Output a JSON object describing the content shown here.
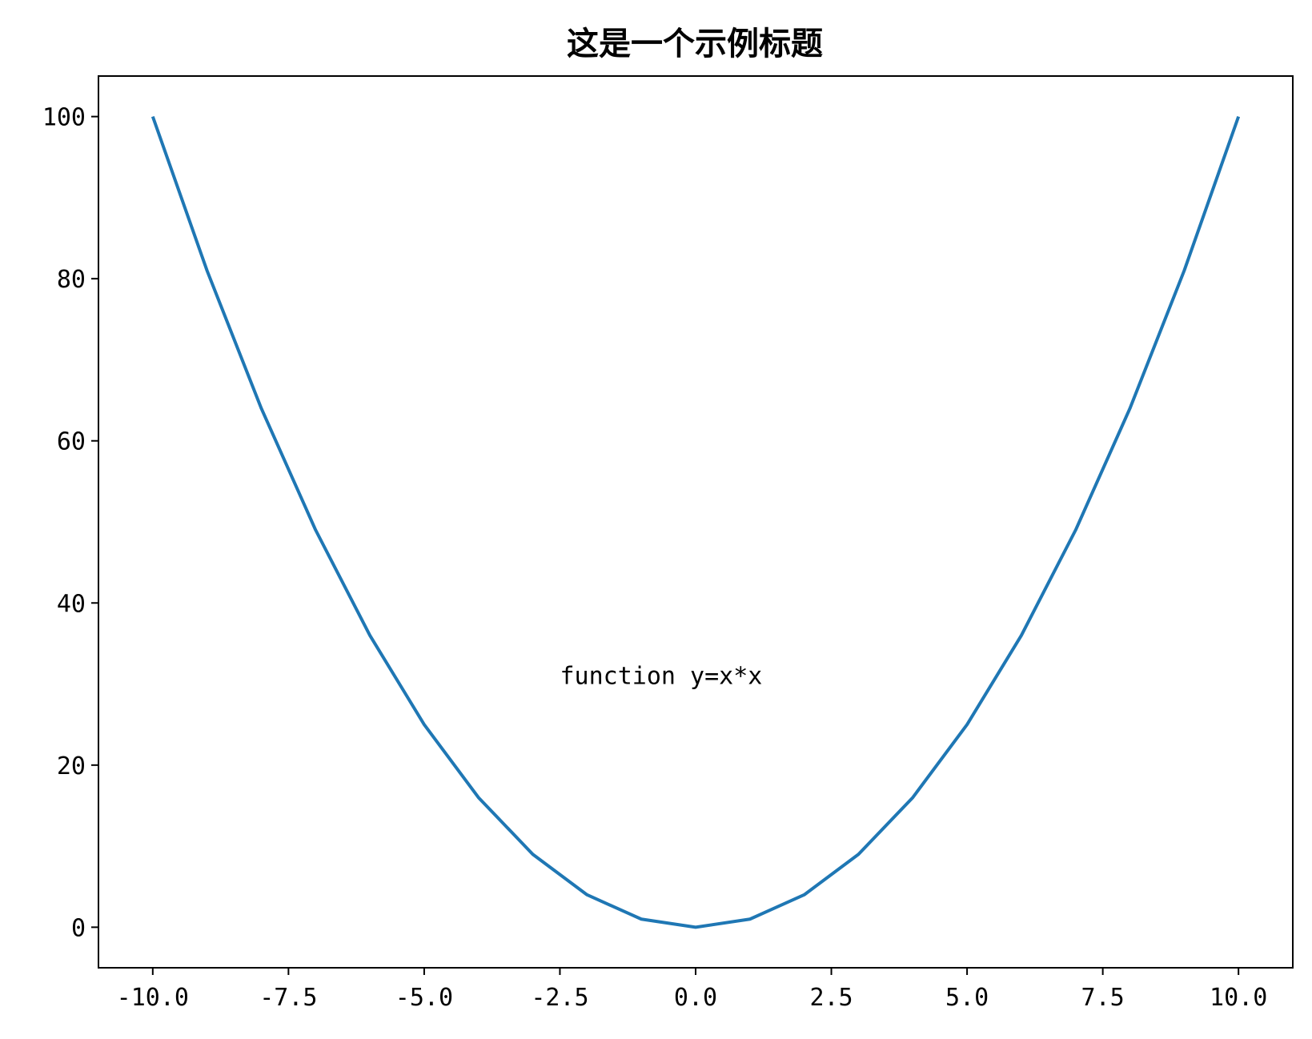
{
  "chart_data": {
    "type": "line",
    "title": "这是一个示例标题",
    "xlabel": "",
    "ylabel": "",
    "xlim": [
      -11,
      11
    ],
    "ylim": [
      -5,
      105
    ],
    "x_ticks": [
      -10.0,
      -7.5,
      -5.0,
      -2.5,
      0.0,
      2.5,
      5.0,
      7.5,
      10.0
    ],
    "x_tick_labels": [
      "-10.0",
      "-7.5",
      "-5.0",
      "-2.5",
      "0.0",
      "2.5",
      "5.0",
      "7.5",
      "10.0"
    ],
    "y_ticks": [
      0,
      20,
      40,
      60,
      80,
      100
    ],
    "y_tick_labels": [
      "0",
      "20",
      "40",
      "60",
      "80",
      "100"
    ],
    "grid": false,
    "legend": "none",
    "annotation": {
      "text": "function y=x*x",
      "x": -2.5,
      "y": 30
    },
    "series": [
      {
        "color": "#1f77b4",
        "x": [
          -10,
          -9,
          -8,
          -7,
          -6,
          -5,
          -4,
          -3,
          -2,
          -1,
          0,
          1,
          2,
          3,
          4,
          5,
          6,
          7,
          8,
          9,
          10
        ],
        "y": [
          100,
          81,
          64,
          49,
          36,
          25,
          16,
          9,
          4,
          1,
          0,
          1,
          4,
          9,
          16,
          25,
          36,
          49,
          64,
          81,
          100
        ]
      }
    ]
  }
}
